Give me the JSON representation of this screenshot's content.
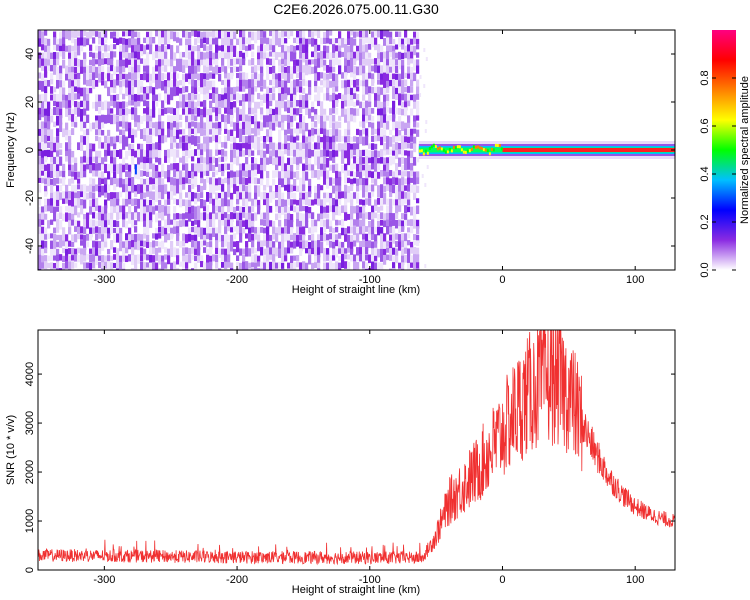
{
  "title": "C2E6.2026.075.00.11.G30",
  "chart_data": [
    {
      "type": "heatmap",
      "xlabel": "Height of straight line (km)",
      "ylabel": "Frequency (Hz)",
      "xlim": [
        -350,
        130
      ],
      "ylim": [
        -50,
        50
      ],
      "xticks": [
        -300,
        -200,
        -100,
        0,
        100
      ],
      "yticks": [
        -40,
        -20,
        0,
        20,
        40
      ],
      "grid": false,
      "noise_region_x": [
        -350,
        -63
      ],
      "signal_start_x": -63,
      "signal_frequency": 0,
      "colorbar": {
        "label": "Normalized spectral amplitude",
        "range": [
          0,
          1
        ],
        "ticks": [
          "0.0",
          "0.2",
          "0.4",
          "0.6",
          "0.8"
        ],
        "colors": [
          "#ffffff",
          "#8a2be2",
          "#0000ff",
          "#00c0ff",
          "#00ff00",
          "#ffff00",
          "#ff8000",
          "#ff0000",
          "#ff0080"
        ]
      }
    },
    {
      "type": "line",
      "xlabel": "Height of straight line (km)",
      "ylabel": "SNR (10 * v/v)",
      "xlim": [
        -350,
        130
      ],
      "ylim": [
        0,
        4900
      ],
      "xticks": [
        -300,
        -200,
        -100,
        0,
        100
      ],
      "yticks": [
        0,
        1000,
        2000,
        3000,
        4000
      ],
      "grid": false,
      "color": "#f03030",
      "envelope": [
        {
          "x": -350,
          "y": 300
        },
        {
          "x": -300,
          "y": 290
        },
        {
          "x": -200,
          "y": 260
        },
        {
          "x": -100,
          "y": 250
        },
        {
          "x": -60,
          "y": 250
        },
        {
          "x": -50,
          "y": 700
        },
        {
          "x": -40,
          "y": 1400
        },
        {
          "x": -30,
          "y": 1700
        },
        {
          "x": -20,
          "y": 2000
        },
        {
          "x": -10,
          "y": 2400
        },
        {
          "x": 0,
          "y": 2800
        },
        {
          "x": 10,
          "y": 3250
        },
        {
          "x": 20,
          "y": 3600
        },
        {
          "x": 30,
          "y": 3850
        },
        {
          "x": 40,
          "y": 3900
        },
        {
          "x": 50,
          "y": 3600
        },
        {
          "x": 60,
          "y": 3000
        },
        {
          "x": 70,
          "y": 2400
        },
        {
          "x": 80,
          "y": 1900
        },
        {
          "x": 90,
          "y": 1550
        },
        {
          "x": 100,
          "y": 1300
        },
        {
          "x": 110,
          "y": 1150
        },
        {
          "x": 120,
          "y": 1050
        },
        {
          "x": 130,
          "y": 1000
        }
      ]
    }
  ]
}
